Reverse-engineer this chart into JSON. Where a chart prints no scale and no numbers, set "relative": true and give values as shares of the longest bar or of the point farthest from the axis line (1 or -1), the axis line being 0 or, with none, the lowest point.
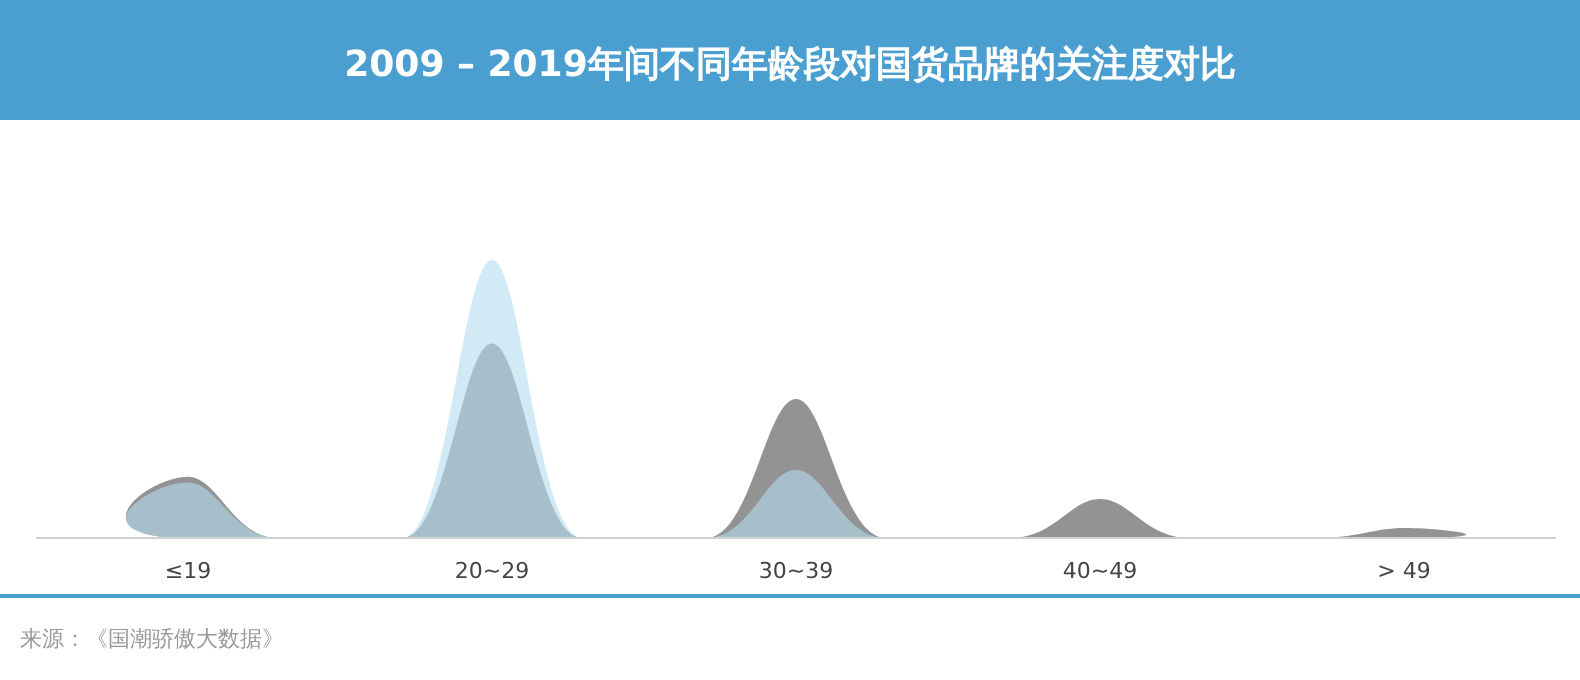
{
  "chart_data": {
    "type": "area",
    "title": "2009 – 2019年间不同年龄段对国货品牌的关注度对比",
    "relative": true,
    "categories": [
      "≤19",
      "20~29",
      "30~39",
      "40~49",
      "> 49"
    ],
    "series": [
      {
        "color": "#939393",
        "values": [
          0.22,
          0.7,
          0.5,
          0.14,
          0.036
        ]
      },
      {
        "color": "#b4dcf0",
        "values": [
          0.2,
          1,
          0.245,
          0,
          0
        ]
      }
    ],
    "annotations": [
      "来源：《国潮骄傲大数据》"
    ]
  }
}
